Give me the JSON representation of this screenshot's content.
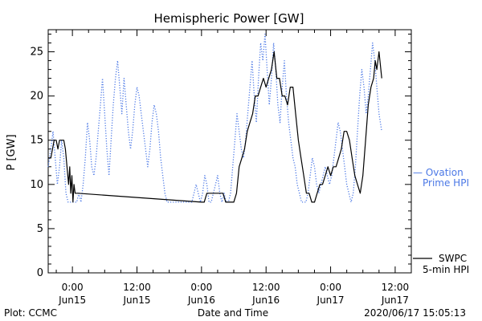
{
  "chart_data": {
    "type": "line",
    "title": "Hemispheric Power [GW]",
    "ylabel": "P [GW]",
    "xlabel": "Date and Time",
    "footer_left": "Plot: CCMC",
    "footer_right": "2020/06/17 15:05:13",
    "xlim": [
      -4.5,
      63
    ],
    "ylim": [
      0,
      27.5
    ],
    "y_ticks": [
      0,
      5,
      10,
      15,
      20,
      25
    ],
    "x_ticks": [
      {
        "x": 0,
        "time": "0:00",
        "date": "Jun15"
      },
      {
        "x": 12,
        "time": "12:00",
        "date": "Jun15"
      },
      {
        "x": 24,
        "time": "0:00",
        "date": "Jun16"
      },
      {
        "x": 36,
        "time": "12:00",
        "date": "Jun16"
      },
      {
        "x": 48,
        "time": "0:00",
        "date": "Jun17"
      },
      {
        "x": 60,
        "time": "12:00",
        "date": "Jun17"
      }
    ],
    "grid": false,
    "series": [
      {
        "name": "SWPC 5-min HPI",
        "legend_lines": [
          "SWPC",
          "5-min HPI"
        ],
        "color": "#000000",
        "style": "solid",
        "points": [
          [
            -4.5,
            13
          ],
          [
            -4,
            13
          ],
          [
            -3.7,
            14
          ],
          [
            -3.4,
            15
          ],
          [
            -3,
            15
          ],
          [
            -2.7,
            14
          ],
          [
            -2.4,
            15
          ],
          [
            -1.6,
            15
          ],
          [
            -1.3,
            14
          ],
          [
            -1,
            12
          ],
          [
            -0.7,
            10
          ],
          [
            -0.5,
            12
          ],
          [
            -0.3,
            9
          ],
          [
            -0.1,
            11
          ],
          [
            0.1,
            8
          ],
          [
            0.3,
            10
          ],
          [
            0.5,
            9
          ],
          [
            1,
            9
          ],
          [
            24,
            8
          ],
          [
            24.5,
            8
          ],
          [
            25,
            9
          ],
          [
            28,
            9
          ],
          [
            28.5,
            8
          ],
          [
            30,
            8
          ],
          [
            30.5,
            9
          ],
          [
            31,
            12
          ],
          [
            31.5,
            13
          ],
          [
            32,
            14
          ],
          [
            32.5,
            16
          ],
          [
            33,
            17
          ],
          [
            33.5,
            18
          ],
          [
            34,
            20
          ],
          [
            34.5,
            20
          ],
          [
            35,
            21
          ],
          [
            35.5,
            22
          ],
          [
            36,
            21
          ],
          [
            36.5,
            22
          ],
          [
            37,
            23
          ],
          [
            37.5,
            25
          ],
          [
            38,
            22
          ],
          [
            38.5,
            22
          ],
          [
            39,
            20
          ],
          [
            39.5,
            20
          ],
          [
            40,
            19
          ],
          [
            40.5,
            21
          ],
          [
            41,
            21
          ],
          [
            41.5,
            18
          ],
          [
            42,
            15
          ],
          [
            42.5,
            13
          ],
          [
            43,
            11
          ],
          [
            43.5,
            9
          ],
          [
            44,
            9
          ],
          [
            44.5,
            8
          ],
          [
            45,
            8
          ],
          [
            45.5,
            9
          ],
          [
            46,
            10
          ],
          [
            46.5,
            10
          ],
          [
            47,
            11
          ],
          [
            47.5,
            12
          ],
          [
            48,
            11
          ],
          [
            48.5,
            12
          ],
          [
            49,
            12
          ],
          [
            49.5,
            13
          ],
          [
            50,
            14
          ],
          [
            50.5,
            16
          ],
          [
            51,
            16
          ],
          [
            51.5,
            15
          ],
          [
            52,
            13
          ],
          [
            52.5,
            11
          ],
          [
            53,
            10
          ],
          [
            53.5,
            9
          ],
          [
            54,
            11
          ],
          [
            54.5,
            15
          ],
          [
            55,
            19
          ],
          [
            55.5,
            21
          ],
          [
            56,
            22
          ],
          [
            56.3,
            24
          ],
          [
            56.6,
            23
          ],
          [
            57,
            25
          ],
          [
            57.5,
            22
          ]
        ]
      },
      {
        "name": "Ovation Prime HPI",
        "legend_lines": [
          "— Ovation",
          "Prime HPI"
        ],
        "color": "#4b78e6",
        "style": "dotted",
        "points": [
          [
            -4.5,
            12
          ],
          [
            -4,
            14
          ],
          [
            -3.6,
            16
          ],
          [
            -3.2,
            13
          ],
          [
            -2.8,
            10
          ],
          [
            -2.4,
            12
          ],
          [
            -2,
            15
          ],
          [
            -1.6,
            13
          ],
          [
            -1.2,
            9
          ],
          [
            -0.8,
            8
          ],
          [
            -0.4,
            8
          ],
          [
            0,
            8
          ],
          [
            0.4,
            8
          ],
          [
            0.8,
            8
          ],
          [
            1.2,
            9
          ],
          [
            1.6,
            8
          ],
          [
            2,
            10
          ],
          [
            2.4,
            13
          ],
          [
            2.8,
            17
          ],
          [
            3.2,
            15
          ],
          [
            3.6,
            12
          ],
          [
            4,
            11
          ],
          [
            4.4,
            13
          ],
          [
            4.8,
            16
          ],
          [
            5.2,
            19
          ],
          [
            5.6,
            22
          ],
          [
            6,
            18
          ],
          [
            6.4,
            14
          ],
          [
            6.8,
            11
          ],
          [
            7.2,
            15
          ],
          [
            7.6,
            19
          ],
          [
            8,
            22
          ],
          [
            8.4,
            24
          ],
          [
            8.8,
            21
          ],
          [
            9.2,
            18
          ],
          [
            9.6,
            22
          ],
          [
            10,
            19
          ],
          [
            10.4,
            16
          ],
          [
            10.8,
            14
          ],
          [
            11.2,
            16
          ],
          [
            11.6,
            19
          ],
          [
            12,
            21
          ],
          [
            12.4,
            20
          ],
          [
            12.8,
            18
          ],
          [
            13.2,
            16
          ],
          [
            13.6,
            14
          ],
          [
            14,
            12
          ],
          [
            14.4,
            14
          ],
          [
            14.8,
            17
          ],
          [
            15.2,
            19
          ],
          [
            15.6,
            18
          ],
          [
            16,
            16
          ],
          [
            16.4,
            13
          ],
          [
            16.8,
            11
          ],
          [
            17.2,
            9
          ],
          [
            17.6,
            8
          ],
          [
            18,
            8
          ],
          [
            18.6,
            8
          ],
          [
            19.2,
            8
          ],
          [
            19.8,
            8
          ],
          [
            20.4,
            8
          ],
          [
            21,
            8
          ],
          [
            21.6,
            8
          ],
          [
            22.2,
            8
          ],
          [
            22.6,
            9
          ],
          [
            23,
            10
          ],
          [
            23.4,
            9
          ],
          [
            23.8,
            8
          ],
          [
            24.2,
            9
          ],
          [
            24.6,
            11
          ],
          [
            25,
            10
          ],
          [
            25.4,
            8
          ],
          [
            25.8,
            8
          ],
          [
            26.2,
            9
          ],
          [
            26.6,
            10
          ],
          [
            27,
            11
          ],
          [
            27.4,
            9
          ],
          [
            27.8,
            8
          ],
          [
            28.2,
            9
          ],
          [
            28.6,
            8
          ],
          [
            29,
            8
          ],
          [
            29.4,
            9
          ],
          [
            29.8,
            12
          ],
          [
            30.2,
            15
          ],
          [
            30.6,
            18
          ],
          [
            31,
            16
          ],
          [
            31.4,
            14
          ],
          [
            31.8,
            13
          ],
          [
            32.2,
            15
          ],
          [
            32.6,
            18
          ],
          [
            33,
            21
          ],
          [
            33.4,
            24
          ],
          [
            33.8,
            20
          ],
          [
            34.2,
            17
          ],
          [
            34.6,
            22
          ],
          [
            35,
            26
          ],
          [
            35.4,
            24
          ],
          [
            35.8,
            27
          ],
          [
            36.2,
            23
          ],
          [
            36.6,
            19
          ],
          [
            37,
            22
          ],
          [
            37.4,
            26
          ],
          [
            37.8,
            23
          ],
          [
            38.2,
            19
          ],
          [
            38.6,
            17
          ],
          [
            39,
            21
          ],
          [
            39.4,
            24
          ],
          [
            39.8,
            20
          ],
          [
            40.2,
            17
          ],
          [
            40.6,
            15
          ],
          [
            41,
            13
          ],
          [
            41.4,
            12
          ],
          [
            41.8,
            10
          ],
          [
            42.2,
            9
          ],
          [
            42.6,
            8
          ],
          [
            43,
            8
          ],
          [
            43.4,
            8
          ],
          [
            43.8,
            9
          ],
          [
            44.2,
            11
          ],
          [
            44.6,
            13
          ],
          [
            45,
            12
          ],
          [
            45.4,
            10
          ],
          [
            45.8,
            9
          ],
          [
            46.2,
            10
          ],
          [
            46.6,
            11
          ],
          [
            47,
            12
          ],
          [
            47.4,
            11
          ],
          [
            47.8,
            10
          ],
          [
            48.2,
            11
          ],
          [
            48.6,
            13
          ],
          [
            49,
            15
          ],
          [
            49.4,
            17
          ],
          [
            49.8,
            16
          ],
          [
            50.2,
            14
          ],
          [
            50.6,
            12
          ],
          [
            51,
            10
          ],
          [
            51.4,
            9
          ],
          [
            51.8,
            8
          ],
          [
            52.2,
            9
          ],
          [
            52.6,
            12
          ],
          [
            53,
            16
          ],
          [
            53.4,
            20
          ],
          [
            53.8,
            23
          ],
          [
            54.2,
            21
          ],
          [
            54.6,
            18
          ],
          [
            55,
            20
          ],
          [
            55.4,
            23
          ],
          [
            55.8,
            26
          ],
          [
            56.2,
            24
          ],
          [
            56.6,
            21
          ],
          [
            57,
            18
          ],
          [
            57.5,
            16
          ]
        ]
      }
    ]
  }
}
